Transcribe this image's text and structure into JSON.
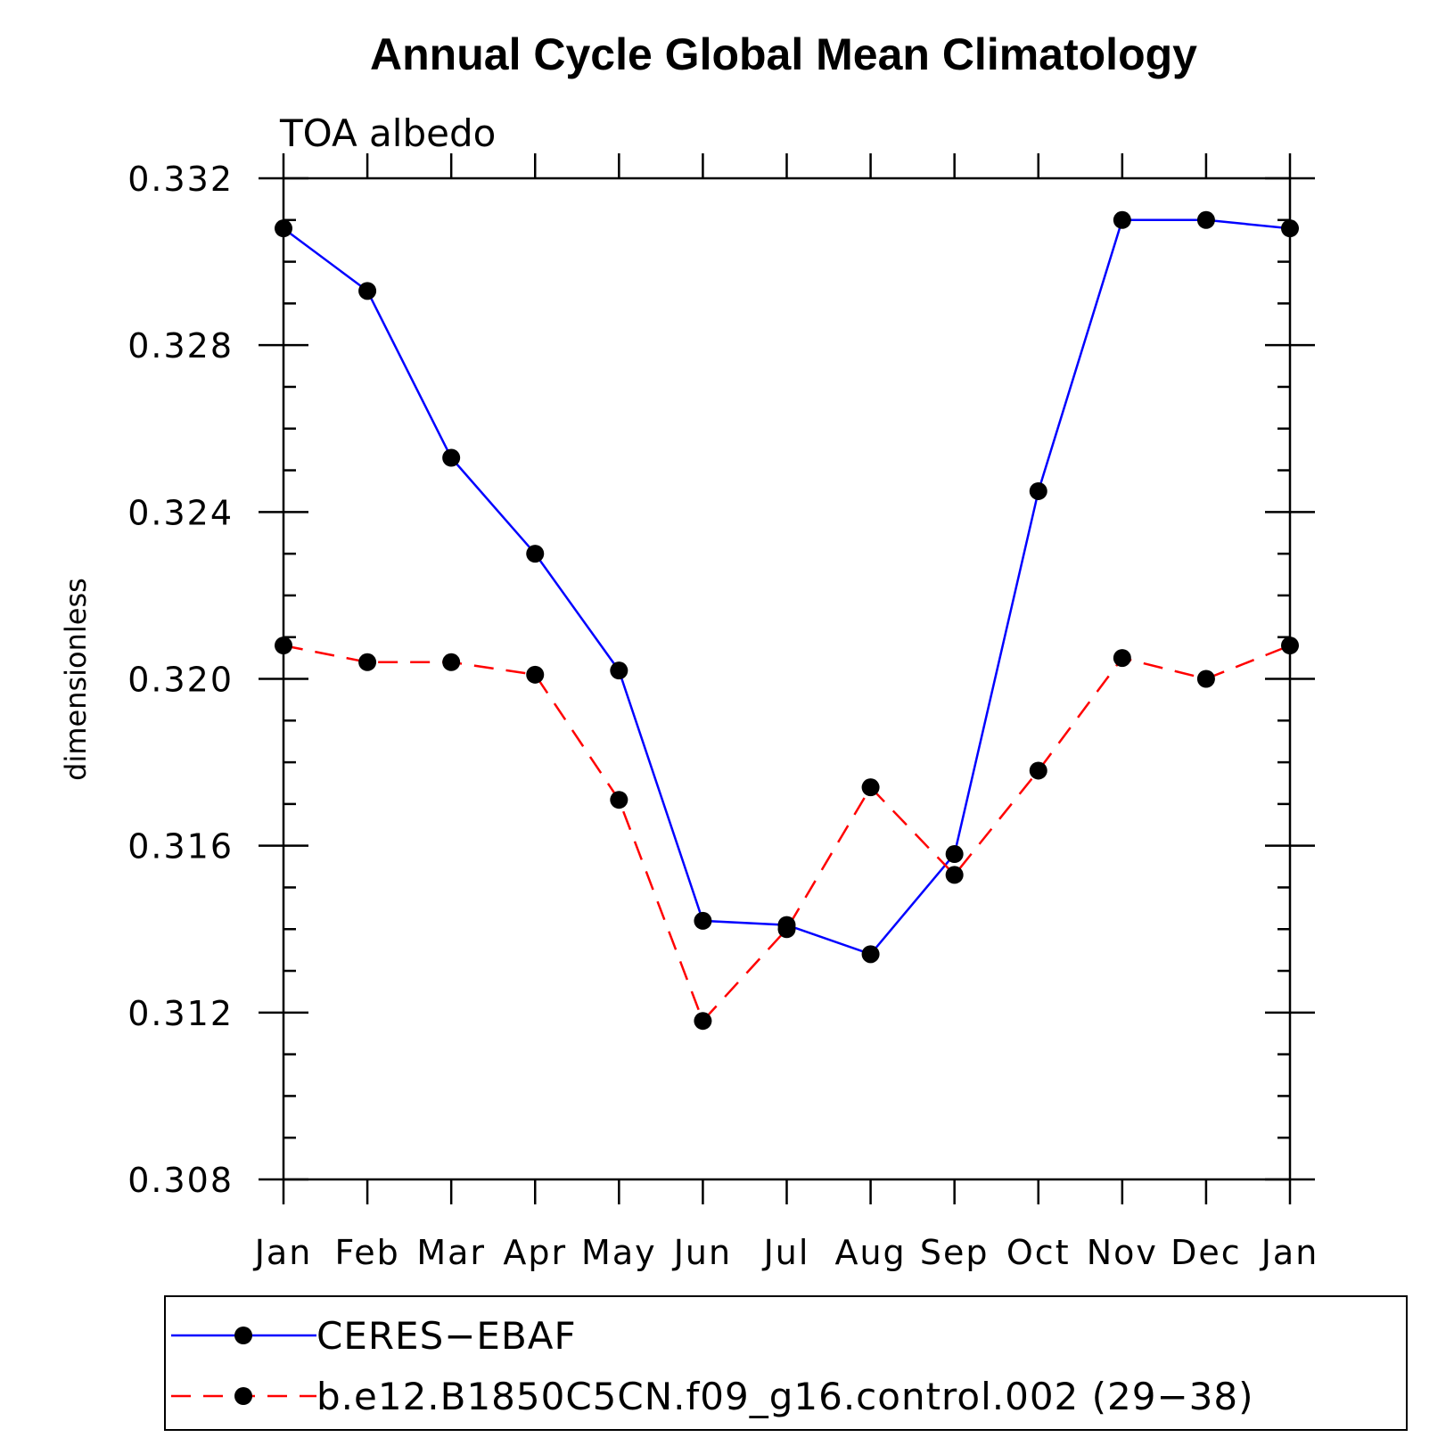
{
  "chart_data": {
    "type": "line",
    "title": "Annual Cycle Global Mean Climatology",
    "subtitle": "TOA  albedo",
    "xlabel": "",
    "ylabel": "dimensionless",
    "categories": [
      "Jan",
      "Feb",
      "Mar",
      "Apr",
      "May",
      "Jun",
      "Jul",
      "Aug",
      "Sep",
      "Oct",
      "Nov",
      "Dec",
      "Jan"
    ],
    "ylim": [
      0.308,
      0.332
    ],
    "y_ticks": [
      "0.308",
      "0.312",
      "0.316",
      "0.320",
      "0.324",
      "0.328",
      "0.332"
    ],
    "y_tick_values": [
      0.308,
      0.312,
      0.316,
      0.32,
      0.324,
      0.328,
      0.332
    ],
    "series": [
      {
        "name": "CERES−EBAF",
        "color": "#0000ff",
        "line_style": "solid",
        "marker": "filled-circle",
        "values": [
          0.3308,
          0.3293,
          0.3253,
          0.323,
          0.3202,
          0.3142,
          0.3141,
          0.3134,
          0.3158,
          0.3245,
          0.331,
          0.331,
          0.3308
        ]
      },
      {
        "name": "b.e12.B1850C5CN.f09_g16.control.002 (29−38)",
        "color": "#ff0000",
        "line_style": "dashed",
        "marker": "filled-circle",
        "values": [
          0.3208,
          0.3204,
          0.3204,
          0.3201,
          0.3171,
          0.3118,
          0.314,
          0.3174,
          0.3153,
          0.3178,
          0.3205,
          0.32,
          0.3208
        ]
      }
    ],
    "grid": false,
    "legend": "bottom"
  }
}
